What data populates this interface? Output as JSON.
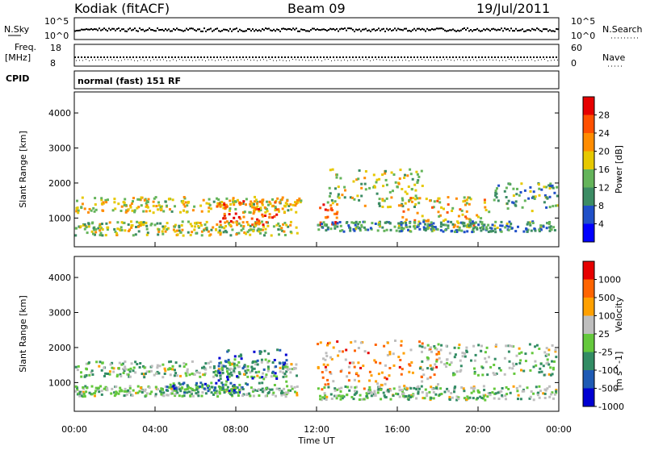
{
  "header": {
    "station": "Kodiak (fitACF)",
    "beam": "Beam 09",
    "date": "19/Jul/2011"
  },
  "top_panels": {
    "nsky_label": "N.Sky",
    "nsky_ticks": [
      "10^5",
      "10^0"
    ],
    "nsearch_label": "N.Search",
    "nsearch_ticks": [
      "10^5",
      "10^0"
    ],
    "freq_label": "Freq.",
    "freq_unit": "[MHz]",
    "freq_ticks": [
      "18",
      "8"
    ],
    "nave_label": "Nave",
    "nave_ticks": [
      "60",
      "0"
    ],
    "cpid_label": "CPID",
    "cpid_value": "normal (fast) 151 RF"
  },
  "chart_data": [
    {
      "type": "heatmap",
      "name": "power",
      "ylabel": "Slant Range [km]",
      "yticks": [
        "4000",
        "3000",
        "2000",
        "1000"
      ],
      "ylim": [
        180,
        4600
      ],
      "xlim_hours": [
        0,
        24
      ],
      "colorbar_label": "Power [dB]",
      "colorbar_ticks": [
        "28",
        "24",
        "20",
        "16",
        "12",
        "8",
        "4"
      ],
      "colors": [
        "#0000ff",
        "#2050c8",
        "#3c8c64",
        "#64b45a",
        "#e6c800",
        "#ff8c00",
        "#ff5000",
        "#e60000"
      ],
      "echo_bands": [
        {
          "t0": 0.0,
          "t1": 11.2,
          "r0": 1150,
          "r1": 1600,
          "level": 0.55
        },
        {
          "t0": 0.0,
          "t1": 11.0,
          "r0": 500,
          "r1": 900,
          "level": 0.5
        },
        {
          "t0": 7.0,
          "t1": 10.0,
          "r0": 800,
          "r1": 1500,
          "level": 0.85
        },
        {
          "t0": 12.0,
          "t1": 13.0,
          "r0": 800,
          "r1": 1400,
          "level": 0.9
        },
        {
          "t0": 12.5,
          "t1": 17.5,
          "r0": 1300,
          "r1": 2400,
          "level": 0.5
        },
        {
          "t0": 16.0,
          "t1": 20.5,
          "r0": 700,
          "r1": 1600,
          "level": 0.6
        },
        {
          "t0": 20.5,
          "t1": 24.0,
          "r0": 1200,
          "r1": 2000,
          "level": 0.35
        },
        {
          "t0": 12.0,
          "t1": 24.0,
          "r0": 600,
          "r1": 900,
          "level": 0.3
        }
      ]
    },
    {
      "type": "heatmap",
      "name": "velocity",
      "ylabel": "Slant Range [km]",
      "yticks": [
        "4000",
        "3000",
        "2000",
        "1000"
      ],
      "ylim": [
        180,
        4600
      ],
      "xlim_hours": [
        0,
        24
      ],
      "xticks": [
        "00:00",
        "04:00",
        "08:00",
        "12:00",
        "16:00",
        "20:00",
        "00:00"
      ],
      "xlabel": "Time UT",
      "colorbar_label": "Velocity",
      "colorbar_unit": "[m s^-1]",
      "colorbar_ticks": [
        "1000",
        "500",
        "100",
        "25",
        "-25",
        "-100",
        "-500",
        "-1000"
      ],
      "colors": [
        "#0000d2",
        "#1e5ab4",
        "#328c64",
        "#64c83c",
        "#bebebe",
        "#ffa000",
        "#ff6400",
        "#e60000"
      ],
      "echo_bands": [
        {
          "t0": 0.0,
          "t1": 11.0,
          "r0": 1150,
          "r1": 1600,
          "level": 0.45
        },
        {
          "t0": 0.0,
          "t1": 11.0,
          "r0": 600,
          "r1": 900,
          "level": 0.45
        },
        {
          "t0": 4.5,
          "t1": 8.5,
          "r0": 700,
          "r1": 1000,
          "level": 0.25
        },
        {
          "t0": 7.0,
          "t1": 10.5,
          "r0": 900,
          "r1": 2000,
          "level": 0.2
        },
        {
          "t0": 12.0,
          "t1": 18.0,
          "r0": 800,
          "r1": 2200,
          "level": 0.75
        },
        {
          "t0": 17.0,
          "t1": 24.0,
          "r0": 1200,
          "r1": 2100,
          "level": 0.45
        },
        {
          "t0": 12.0,
          "t1": 24.0,
          "r0": 500,
          "r1": 900,
          "level": 0.45
        }
      ]
    }
  ]
}
